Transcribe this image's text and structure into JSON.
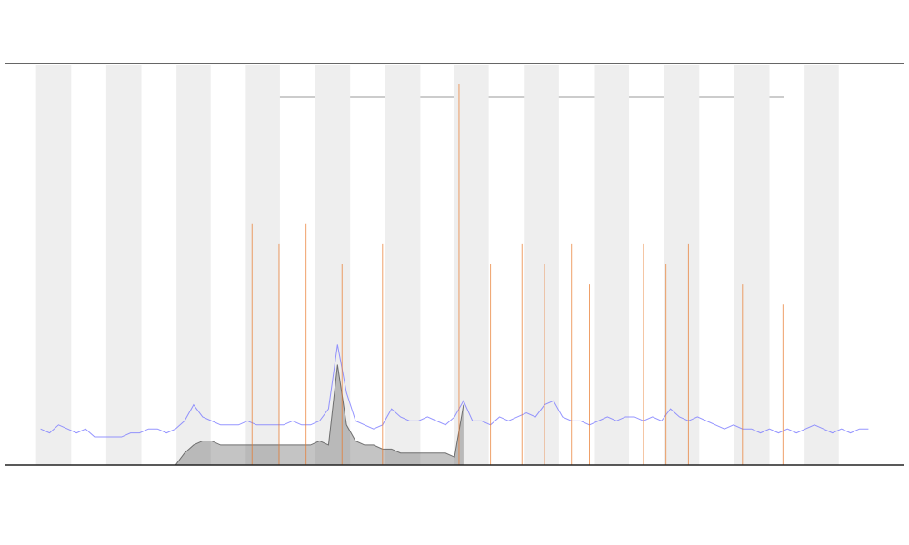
{
  "chart_data": {
    "type": "line",
    "xlim": [
      0,
      100
    ],
    "ylim": [
      0,
      100
    ],
    "shaded_ranges": [
      [
        3.5,
        7.4
      ],
      [
        11.3,
        15.2
      ],
      [
        19.1,
        22.9
      ],
      [
        26.8,
        30.6
      ],
      [
        34.5,
        38.4
      ],
      [
        42.3,
        46.2
      ],
      [
        50.0,
        53.8
      ],
      [
        57.8,
        61.6
      ],
      [
        61.6,
        61.6
      ],
      [
        65.6,
        69.4
      ],
      [
        73.3,
        77.2
      ],
      [
        81.1,
        85.0
      ],
      [
        88.9,
        92.7
      ]
    ],
    "series": [
      {
        "color": "#7b7bff",
        "x": [
          4,
          5,
          6,
          7,
          8,
          9,
          10,
          11,
          12,
          13,
          14,
          15,
          16,
          17,
          18,
          19,
          20,
          21,
          22,
          23,
          24,
          25,
          26,
          27,
          28,
          29,
          30,
          31,
          32,
          33,
          34,
          35,
          36,
          37,
          38,
          39,
          40,
          41,
          42,
          43,
          44,
          45,
          46,
          47,
          48,
          49,
          50,
          51,
          52,
          53,
          54,
          55,
          56,
          57,
          58,
          59,
          60,
          61,
          62,
          63,
          64,
          65,
          66,
          67,
          68,
          69,
          70,
          71,
          72,
          73,
          74,
          75,
          76,
          77,
          78,
          79,
          80,
          81,
          82,
          83,
          84,
          85,
          86,
          87,
          88,
          89,
          90,
          91,
          92,
          93,
          94,
          95,
          96
        ],
        "values": [
          9,
          8,
          10,
          9,
          8,
          9,
          7,
          7,
          7,
          7,
          8,
          8,
          9,
          9,
          8,
          9,
          11,
          15,
          12,
          11,
          10,
          10,
          10,
          11,
          10,
          10,
          10,
          10,
          11,
          10,
          10,
          11,
          14,
          30,
          18,
          11,
          10,
          9,
          10,
          14,
          12,
          11,
          11,
          12,
          11,
          10,
          12,
          16,
          11,
          11,
          10,
          12,
          11,
          12,
          13,
          12,
          15,
          16,
          12,
          11,
          11,
          10,
          11,
          12,
          11,
          12,
          12,
          11,
          12,
          11,
          14,
          12,
          11,
          12,
          11,
          10,
          9,
          10,
          9,
          9,
          8,
          9,
          8,
          9,
          8,
          9,
          10,
          9,
          8,
          9,
          8,
          9,
          9
        ]
      },
      {
        "color": "#555555",
        "x": [
          19,
          20,
          21,
          22,
          23,
          24,
          25,
          26,
          27,
          28,
          29,
          30,
          31,
          32,
          33,
          34,
          35,
          36,
          37,
          38,
          39,
          40,
          41,
          42,
          43,
          44,
          45,
          46,
          47,
          48,
          49,
          50,
          51
        ],
        "values": [
          0,
          3,
          5,
          6,
          6,
          5,
          5,
          5,
          5,
          5,
          5,
          5,
          5,
          5,
          5,
          5,
          6,
          5,
          25,
          10,
          6,
          5,
          5,
          4,
          4,
          3,
          3,
          3,
          3,
          3,
          3,
          2,
          15
        ]
      }
    ],
    "events": {
      "color": "#e8782a",
      "x": [
        27.5,
        30.5,
        33.5,
        37.5,
        42,
        50.5,
        54,
        57.5,
        60,
        63,
        65,
        71,
        73.5,
        76,
        82,
        86.5
      ],
      "values": [
        60,
        55,
        60,
        50,
        55,
        95,
        50,
        55,
        50,
        55,
        45,
        55,
        50,
        55,
        45,
        40
      ]
    }
  }
}
